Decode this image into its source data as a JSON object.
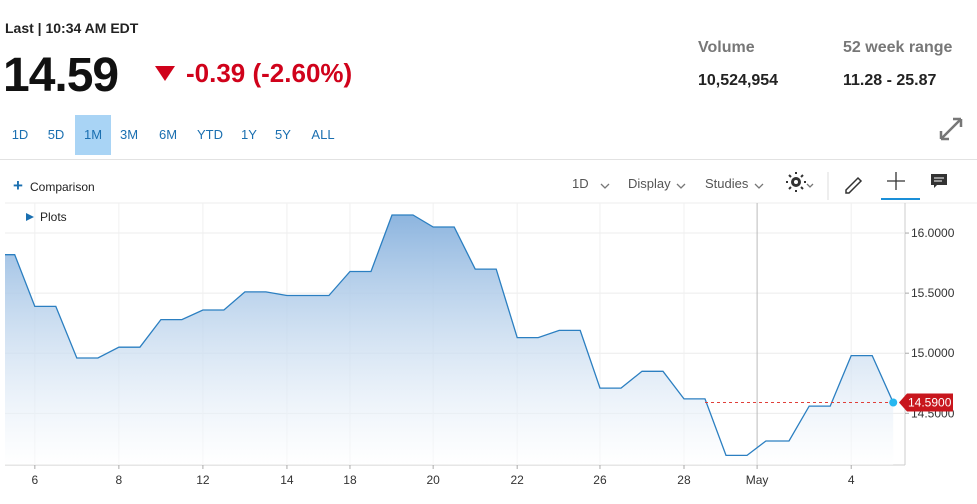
{
  "header": {
    "status": "Last | 10:34 AM EDT",
    "price": "14.59",
    "change": "-0.39 (-2.60%)"
  },
  "stats": [
    {
      "label": "Volume",
      "value": "10,524,954"
    },
    {
      "label": "52 week range",
      "value": "11.28 - 25.87"
    }
  ],
  "ranges": [
    "1D",
    "5D",
    "1M",
    "3M",
    "6M",
    "YTD",
    "1Y",
    "5Y",
    "ALL"
  ],
  "toolbar": {
    "comparison": "Comparison",
    "plots": "Plots",
    "interval": "1D",
    "display": "Display",
    "studies": "Studies"
  },
  "chart_data": {
    "type": "line",
    "color": "#2b7fc1",
    "grid": true,
    "x": [
      0.29,
      0.52,
      1,
      1.5,
      2,
      2.5,
      3,
      3.5,
      4,
      4.5,
      5,
      5.5,
      6,
      6.5,
      7,
      7.5,
      8,
      8.5,
      9,
      9.5,
      10,
      10.48,
      10.98,
      11.48,
      11.98,
      12.48,
      12.98,
      13.48,
      13.98,
      14.45,
      14.95,
      15.45,
      15.95,
      16.45,
      16.95,
      17.45,
      17.95,
      18.4,
      18.95,
      19.43,
      19.93,
      20.43,
      20.93,
      21.43
    ],
    "values": [
      15.82,
      15.82,
      15.39,
      15.39,
      14.96,
      14.96,
      15.05,
      15.05,
      15.28,
      15.28,
      15.36,
      15.36,
      15.51,
      15.51,
      15.48,
      15.48,
      15.48,
      15.68,
      15.68,
      16.15,
      16.15,
      16.05,
      16.05,
      15.7,
      15.7,
      15.13,
      15.13,
      15.19,
      15.19,
      14.71,
      14.71,
      14.85,
      14.85,
      14.62,
      14.62,
      14.15,
      14.15,
      14.27,
      14.27,
      14.56,
      14.56,
      14.98,
      14.98,
      14.59
    ],
    "xlim": [
      0.29,
      21.71
    ],
    "ylim": [
      14.07,
      16.25
    ],
    "xticks": [
      {
        "value": 1,
        "label": "6"
      },
      {
        "value": 3,
        "label": "8"
      },
      {
        "value": 5,
        "label": "12"
      },
      {
        "value": 7,
        "label": "14"
      },
      {
        "value": 8.5,
        "label": "18"
      },
      {
        "value": 10.48,
        "label": "20"
      },
      {
        "value": 12.48,
        "label": "22"
      },
      {
        "value": 14.45,
        "label": "26"
      },
      {
        "value": 16.45,
        "label": "28"
      },
      {
        "value": 18.19,
        "label": "May"
      },
      {
        "value": 20.43,
        "label": "4"
      }
    ],
    "yticks": [
      {
        "value": 14.5,
        "label": "14.5000"
      },
      {
        "value": 15,
        "label": "15.0000"
      },
      {
        "value": 15.5,
        "label": "15.5000"
      },
      {
        "value": 16,
        "label": "16.0000"
      }
    ],
    "last_price": {
      "value": 14.59,
      "label": "14.5900"
    }
  }
}
